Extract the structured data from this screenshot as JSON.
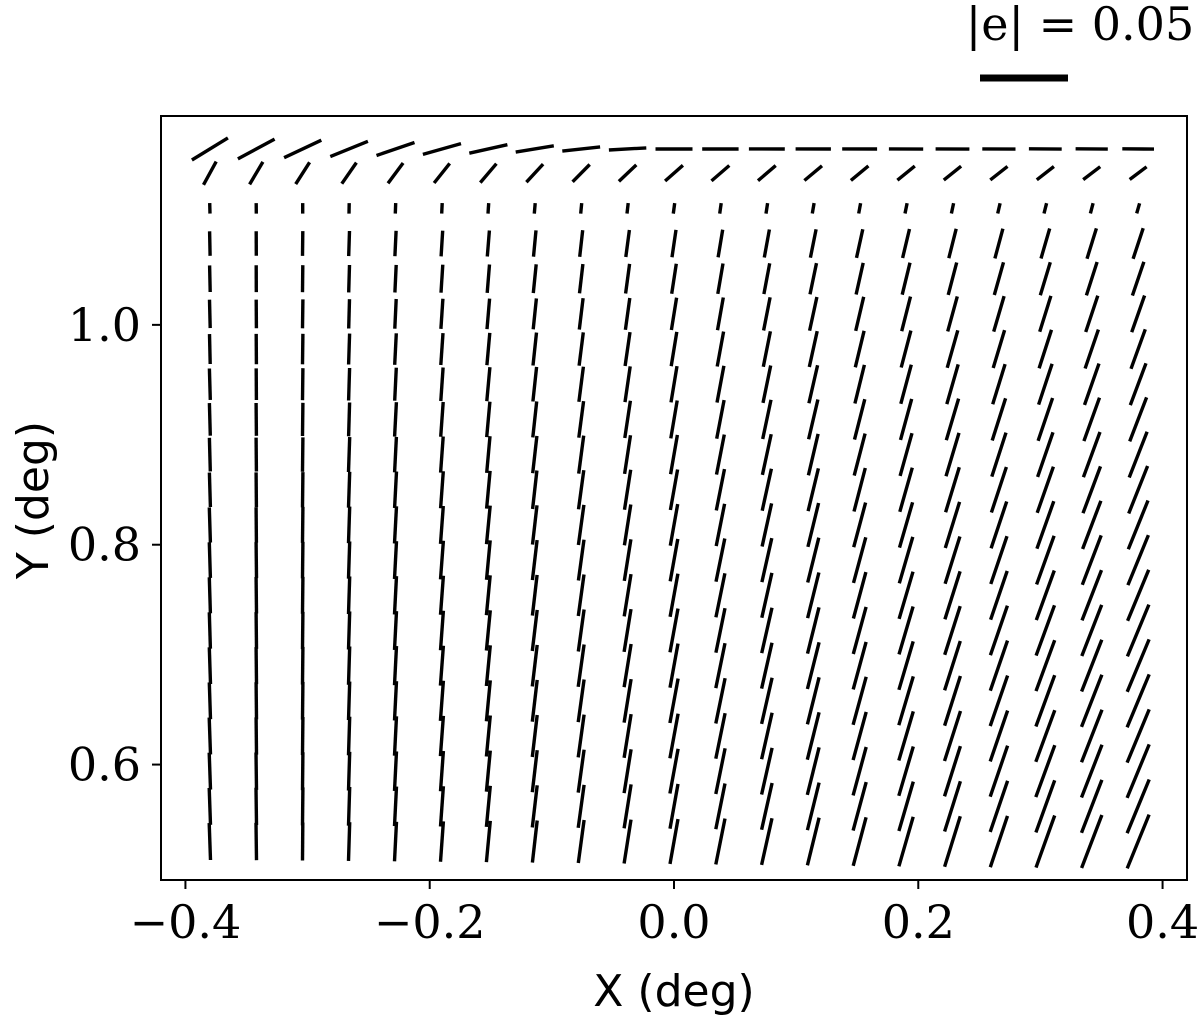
{
  "chart_data": {
    "type": "whisker",
    "xlabel": "X (deg)",
    "ylabel": "Y (deg)",
    "xlim": [
      -0.42,
      0.42
    ],
    "ylim": [
      0.495,
      1.19
    ],
    "xticks": [
      -0.4,
      -0.2,
      0.0,
      0.2,
      0.4
    ],
    "xtick_labels": [
      "−0.4",
      "−0.2",
      "0.0",
      "0.2",
      "0.4"
    ],
    "yticks": [
      0.6,
      0.8,
      1.0
    ],
    "ytick_labels": [
      "0.6",
      "0.8",
      "1.0"
    ],
    "grid": false,
    "legend": {
      "label": "|e| = 0.05",
      "magnitude": 0.05,
      "placement": "top-right, above the axes"
    },
    "grid_x": [
      -0.38,
      -0.342,
      -0.304,
      -0.266,
      -0.228,
      -0.19,
      -0.152,
      -0.114,
      -0.076,
      -0.038,
      0.0,
      0.038,
      0.076,
      0.114,
      0.152,
      0.19,
      0.228,
      0.266,
      0.304,
      0.342,
      0.38
    ],
    "grid_y": [
      0.53,
      0.562,
      0.594,
      0.626,
      0.658,
      0.69,
      0.722,
      0.754,
      0.786,
      0.818,
      0.85,
      0.882,
      0.914,
      0.946,
      0.978,
      1.01,
      1.042,
      1.074,
      1.106,
      1.138,
      1.16
    ],
    "field_description": "Whisker length equals ellipticity |e|; orientation is the position angle. Lines are near-vertical over most of the field, tilting increasingly with X, shortening near Y about 1.1, and turning near-horizontal along the top row.",
    "colors": {
      "whisker": "#000000",
      "axes": "#000000",
      "background": "#ffffff"
    }
  }
}
